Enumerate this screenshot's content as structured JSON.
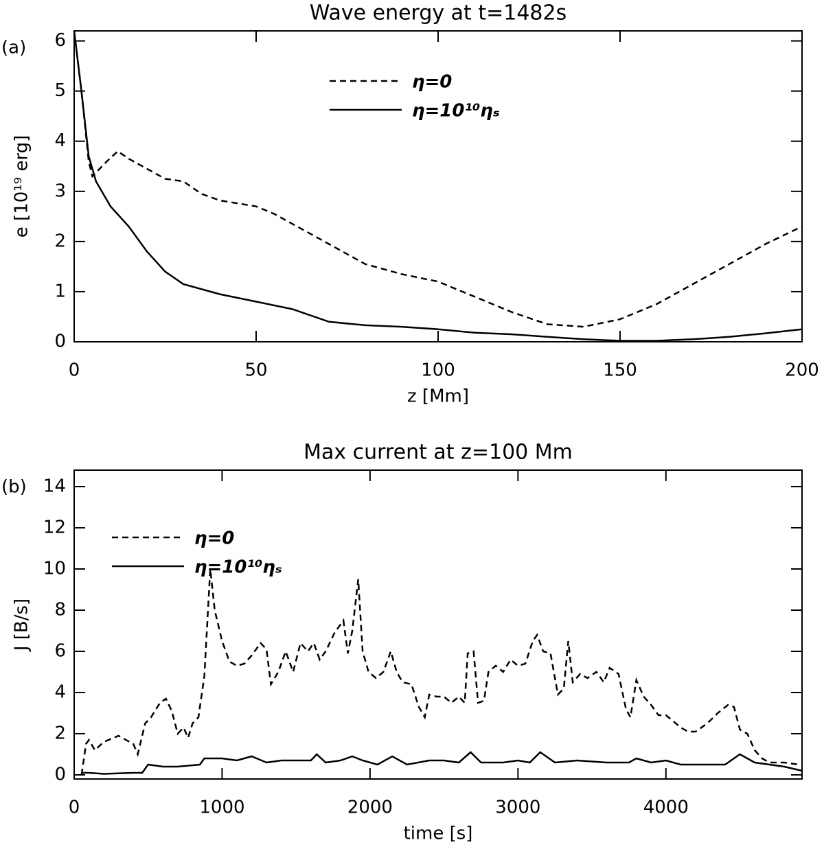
{
  "chart_data": [
    {
      "type": "line",
      "panel_label": "(a)",
      "title": "Wave energy at t=1482s",
      "xlabel": "z [Mm]",
      "ylabel": "e [10¹⁹ erg]",
      "xlim": [
        0,
        200
      ],
      "ylim": [
        0,
        6.2
      ],
      "xticks": [
        0,
        50,
        100,
        150,
        200
      ],
      "yticks": [
        0,
        1,
        2,
        3,
        4,
        5,
        6
      ],
      "legend_position": "upper center",
      "series": [
        {
          "name": "η=0",
          "color": "#000000",
          "line_style": "dashed",
          "x": [
            0,
            2,
            4,
            5,
            7,
            9,
            12,
            15,
            20,
            25,
            30,
            35,
            40,
            50,
            55,
            60,
            70,
            80,
            90,
            100,
            110,
            120,
            130,
            140,
            150,
            160,
            170,
            180,
            190,
            200
          ],
          "values": [
            6.2,
            5.0,
            3.6,
            3.3,
            3.45,
            3.6,
            3.8,
            3.65,
            3.45,
            3.25,
            3.2,
            2.95,
            2.82,
            2.7,
            2.55,
            2.35,
            1.95,
            1.55,
            1.35,
            1.2,
            0.9,
            0.6,
            0.35,
            0.3,
            0.45,
            0.75,
            1.15,
            1.55,
            1.95,
            2.3
          ]
        },
        {
          "name": "η=10¹⁰ηₛ",
          "color": "#000000",
          "line_style": "solid",
          "x": [
            0,
            2,
            4,
            6,
            10,
            15,
            20,
            25,
            30,
            40,
            50,
            60,
            70,
            80,
            90,
            100,
            110,
            120,
            130,
            140,
            150,
            160,
            170,
            180,
            190,
            200
          ],
          "values": [
            6.2,
            5.0,
            3.7,
            3.2,
            2.7,
            2.3,
            1.8,
            1.4,
            1.15,
            0.95,
            0.8,
            0.65,
            0.4,
            0.33,
            0.3,
            0.25,
            0.18,
            0.15,
            0.1,
            0.05,
            0.02,
            0.02,
            0.05,
            0.1,
            0.17,
            0.25
          ]
        }
      ]
    },
    {
      "type": "line",
      "panel_label": "(b)",
      "title": "Max current at z=100 Mm",
      "xlabel": "time [s]",
      "ylabel": "J [B/s]",
      "xlim": [
        0,
        4920
      ],
      "ylim": [
        -0.2,
        14.8
      ],
      "xticks": [
        0,
        1000,
        2000,
        3000,
        4000
      ],
      "yticks": [
        0,
        2,
        4,
        6,
        8,
        10,
        12,
        14
      ],
      "legend_position": "upper left",
      "series": [
        {
          "name": "η=0",
          "color": "#000000",
          "line_style": "dashed",
          "x": [
            50,
            80,
            100,
            140,
            200,
            300,
            400,
            430,
            480,
            520,
            580,
            620,
            660,
            700,
            740,
            770,
            800,
            840,
            880,
            920,
            950,
            1000,
            1050,
            1100,
            1150,
            1200,
            1260,
            1300,
            1330,
            1380,
            1430,
            1480,
            1530,
            1580,
            1620,
            1660,
            1700,
            1760,
            1820,
            1850,
            1880,
            1920,
            1950,
            1990,
            2040,
            2090,
            2140,
            2180,
            2220,
            2280,
            2330,
            2370,
            2400,
            2450,
            2500,
            2550,
            2600,
            2640,
            2660,
            2700,
            2730,
            2770,
            2800,
            2850,
            2900,
            2950,
            3000,
            3050,
            3100,
            3130,
            3170,
            3220,
            3270,
            3310,
            3340,
            3370,
            3420,
            3470,
            3530,
            3580,
            3620,
            3680,
            3730,
            3760,
            3800,
            3850,
            3900,
            3950,
            4000,
            4050,
            4100,
            4150,
            4200,
            4280,
            4350,
            4420,
            4460,
            4500,
            4550,
            4600,
            4650,
            4700,
            4800,
            4900
          ],
          "values": [
            0,
            1.5,
            1.7,
            1.2,
            1.6,
            1.9,
            1.5,
            1.0,
            2.5,
            2.8,
            3.5,
            3.7,
            3.1,
            2.0,
            2.3,
            1.8,
            2.5,
            2.8,
            4.8,
            10.0,
            8.0,
            6.5,
            5.5,
            5.3,
            5.4,
            5.8,
            6.4,
            6.1,
            4.4,
            5.0,
            6.0,
            5.0,
            6.4,
            6.0,
            6.4,
            5.6,
            6.0,
            6.9,
            7.5,
            5.9,
            7.0,
            9.5,
            6.0,
            5.0,
            4.7,
            5.0,
            6.0,
            5.0,
            4.5,
            4.4,
            3.3,
            2.8,
            3.9,
            3.8,
            3.8,
            3.5,
            3.8,
            3.5,
            5.9,
            6.0,
            3.5,
            3.6,
            5.0,
            5.3,
            5.0,
            5.6,
            5.3,
            5.4,
            6.5,
            6.8,
            6.0,
            5.9,
            3.9,
            4.2,
            6.5,
            4.5,
            4.9,
            4.7,
            5.0,
            4.5,
            5.2,
            4.9,
            3.2,
            2.8,
            4.6,
            3.8,
            3.4,
            2.9,
            2.9,
            2.6,
            2.3,
            2.1,
            2.1,
            2.5,
            3.0,
            3.4,
            3.3,
            2.2,
            2.0,
            1.2,
            0.8,
            0.6,
            0.6,
            0.5
          ]
        },
        {
          "name": "η=10¹⁰ηₛ",
          "color": "#000000",
          "line_style": "solid",
          "x": [
            50,
            100,
            200,
            400,
            460,
            500,
            600,
            700,
            850,
            880,
            1000,
            1100,
            1200,
            1300,
            1400,
            1500,
            1600,
            1640,
            1700,
            1800,
            1880,
            1950,
            2050,
            2150,
            2250,
            2400,
            2500,
            2600,
            2680,
            2750,
            2900,
            3000,
            3080,
            3150,
            3250,
            3400,
            3600,
            3750,
            3800,
            3900,
            4000,
            4100,
            4300,
            4400,
            4500,
            4600,
            4700,
            4800,
            4920
          ],
          "values": [
            0.1,
            0.1,
            0.05,
            0.1,
            0.1,
            0.5,
            0.4,
            0.4,
            0.5,
            0.8,
            0.8,
            0.7,
            0.9,
            0.6,
            0.7,
            0.7,
            0.7,
            1.0,
            0.6,
            0.7,
            0.9,
            0.7,
            0.5,
            0.9,
            0.5,
            0.7,
            0.7,
            0.6,
            1.1,
            0.6,
            0.6,
            0.7,
            0.6,
            1.1,
            0.6,
            0.7,
            0.6,
            0.6,
            0.8,
            0.6,
            0.7,
            0.5,
            0.5,
            0.5,
            1.0,
            0.6,
            0.5,
            0.4,
            0.2
          ]
        }
      ]
    }
  ]
}
